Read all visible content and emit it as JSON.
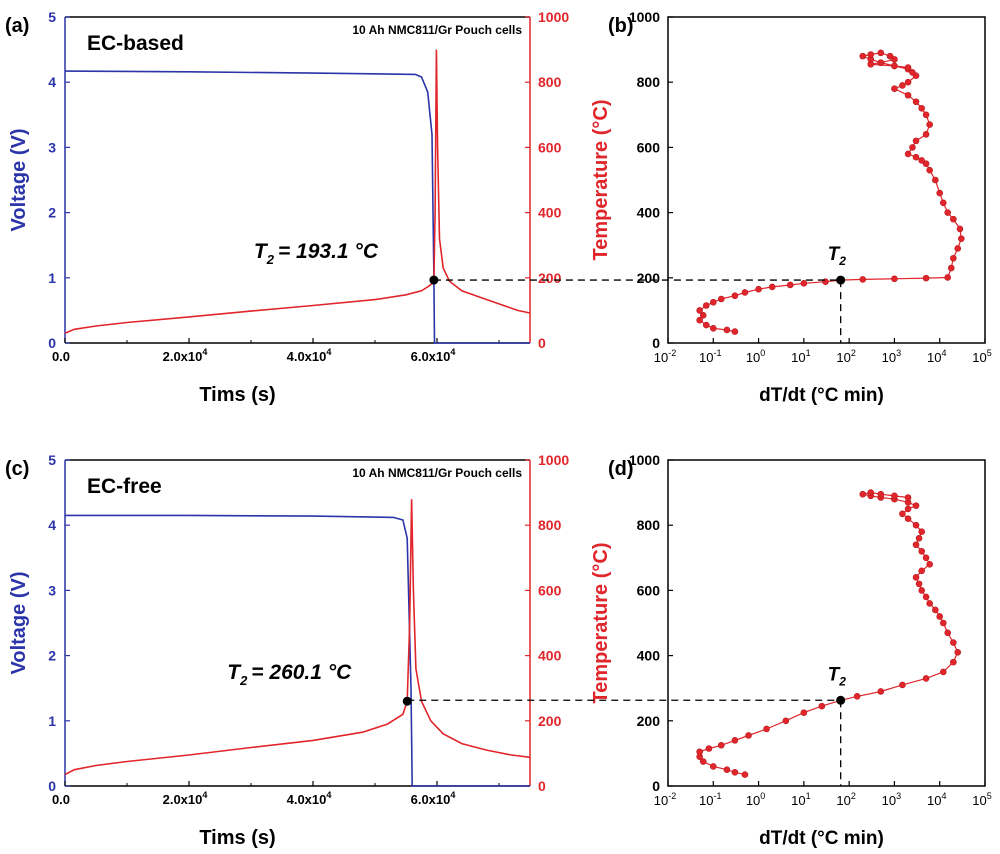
{
  "colors": {
    "voltage": "#2b34a8",
    "temperature": "#e0262b",
    "marker": "#000000",
    "frame": "#000000"
  },
  "chart_data": [
    {
      "panel_label": "(a)",
      "type": "line",
      "annotation_box": "EC-based",
      "note": "10 Ah NMC811/Gr Pouch cells",
      "xlabel": "Tims (s)",
      "ylabel_left": "Voltage (V)",
      "ylabel_right": "Temperature (°C)",
      "xlim": [
        0,
        75000
      ],
      "ylim_left": [
        0,
        5
      ],
      "ylim_right": [
        0,
        1000
      ],
      "x_ticks": [
        "0.0",
        "2.0x10",
        "4.0x10",
        "6.0x10"
      ],
      "y_left_ticks": [
        "0",
        "1",
        "2",
        "3",
        "4",
        "5"
      ],
      "y_right_ticks": [
        "0",
        "200",
        "400",
        "600",
        "800",
        "1000"
      ],
      "t2_label": "T",
      "t2_subscript": "2",
      "t2_value_text": "= 193.1 °C",
      "t2": {
        "x": 59500,
        "temp": 193.1
      },
      "series": [
        {
          "axis": "left",
          "x": [
            0,
            20000,
            40000,
            56500,
            57500,
            58500,
            59200,
            59500,
            59600,
            75000
          ],
          "values": [
            4.17,
            4.16,
            4.14,
            4.12,
            4.08,
            3.85,
            3.2,
            1.0,
            0.0,
            0.0
          ]
        },
        {
          "axis": "right",
          "x": [
            0,
            1500,
            5000,
            10000,
            20000,
            30000,
            40000,
            50000,
            55000,
            57500,
            58500,
            59200,
            59500,
            59700,
            59900,
            60100,
            60400,
            61000,
            62000,
            64000,
            67000,
            70000,
            73000,
            75000
          ],
          "values": [
            30,
            42,
            52,
            63,
            80,
            98,
            115,
            133,
            148,
            160,
            172,
            182,
            193,
            400,
            900,
            600,
            320,
            230,
            190,
            160,
            140,
            120,
            100,
            92
          ]
        }
      ]
    },
    {
      "panel_label": "(b)",
      "type": "scatter",
      "xlabel": "dT/dt (°C min)",
      "ylabel": "",
      "x_scale": "log",
      "xlim": [
        0.01,
        100000
      ],
      "ylim": [
        0,
        1000
      ],
      "x_ticks": [
        "10",
        "10",
        "10",
        "10",
        "10",
        "10",
        "10",
        "10"
      ],
      "x_tick_exponents": [
        "-2",
        "-1",
        "0",
        "1",
        "2",
        "3",
        "4",
        "5"
      ],
      "y_ticks": [
        "0",
        "200",
        "400",
        "600",
        "800",
        "1000"
      ],
      "t2_label": "T",
      "t2_subscript": "2",
      "t2": {
        "x": 65,
        "temp": 193
      },
      "x": [
        0.3,
        0.2,
        0.1,
        0.07,
        0.05,
        0.06,
        0.05,
        0.07,
        0.1,
        0.15,
        0.3,
        0.5,
        1,
        2,
        5,
        10,
        30,
        65,
        200,
        1000,
        5000,
        15000,
        18000,
        20000,
        25000,
        30000,
        28000,
        20000,
        15000,
        12000,
        10000,
        8000,
        6000,
        5000,
        4000,
        3000,
        2000,
        2500,
        3000,
        5000,
        6000,
        5000,
        4000,
        3000,
        2000,
        1000,
        1500,
        2000,
        3000,
        2500,
        2000,
        1000,
        500,
        300,
        200,
        300,
        500,
        800,
        1000,
        500,
        300,
        1000,
        2000
      ],
      "y": [
        35,
        40,
        45,
        55,
        70,
        85,
        100,
        115,
        125,
        135,
        145,
        155,
        165,
        172,
        178,
        183,
        188,
        193,
        195,
        197,
        199,
        201,
        230,
        260,
        290,
        320,
        350,
        380,
        400,
        430,
        460,
        500,
        530,
        550,
        560,
        570,
        580,
        600,
        620,
        640,
        670,
        700,
        720,
        740,
        760,
        780,
        790,
        800,
        820,
        830,
        840,
        850,
        860,
        870,
        880,
        885,
        890,
        880,
        870,
        860,
        855,
        850,
        845
      ]
    },
    {
      "panel_label": "(c)",
      "type": "line",
      "annotation_box": "EC-free",
      "note": "10 Ah NMC811/Gr Pouch cells",
      "xlabel": "Tims (s)",
      "ylabel_left": "Voltage (V)",
      "ylabel_right": "Temperature (°C)",
      "xlim": [
        0,
        75000
      ],
      "ylim_left": [
        0,
        5
      ],
      "ylim_right": [
        0,
        1000
      ],
      "x_ticks": [
        "0.0",
        "2.0x10",
        "4.0x10",
        "6.0x10"
      ],
      "y_left_ticks": [
        "0",
        "1",
        "2",
        "3",
        "4",
        "5"
      ],
      "y_right_ticks": [
        "0",
        "200",
        "400",
        "600",
        "800",
        "1000"
      ],
      "t2_label": "T",
      "t2_subscript": "2",
      "t2_value_text": "= 260.1 °C",
      "t2": {
        "x": 55200,
        "temp": 260.1
      },
      "series": [
        {
          "axis": "left",
          "x": [
            0,
            20000,
            40000,
            53000,
            54500,
            55200,
            55800,
            56000,
            75000
          ],
          "values": [
            4.15,
            4.15,
            4.14,
            4.12,
            4.08,
            3.8,
            1.5,
            0.0,
            0.0
          ]
        },
        {
          "axis": "right",
          "x": [
            0,
            1500,
            5000,
            10000,
            20000,
            30000,
            40000,
            48000,
            52000,
            54500,
            55200,
            55600,
            55900,
            56200,
            56600,
            57500,
            59000,
            61000,
            64000,
            68000,
            72000,
            75000
          ],
          "values": [
            35,
            50,
            63,
            75,
            95,
            118,
            140,
            165,
            190,
            220,
            260,
            500,
            880,
            600,
            360,
            260,
            200,
            160,
            130,
            110,
            95,
            88
          ]
        }
      ]
    },
    {
      "panel_label": "(d)",
      "type": "scatter",
      "xlabel": "dT/dt (°C min)",
      "ylabel": "",
      "x_scale": "log",
      "xlim": [
        0.01,
        100000
      ],
      "ylim": [
        0,
        1000
      ],
      "x_ticks": [
        "10",
        "10",
        "10",
        "10",
        "10",
        "10",
        "10",
        "10"
      ],
      "x_tick_exponents": [
        "-2",
        "-1",
        "0",
        "1",
        "2",
        "3",
        "4",
        "5"
      ],
      "y_ticks": [
        "0",
        "200",
        "400",
        "600",
        "800",
        "1000"
      ],
      "t2_label": "T",
      "t2_subscript": "2",
      "t2": {
        "x": 65,
        "temp": 263
      },
      "x": [
        0.5,
        0.3,
        0.2,
        0.1,
        0.06,
        0.05,
        0.05,
        0.08,
        0.15,
        0.3,
        0.6,
        1.5,
        4,
        10,
        25,
        65,
        150,
        500,
        1500,
        5000,
        12000,
        20000,
        25000,
        20000,
        15000,
        12000,
        10000,
        8000,
        6000,
        5000,
        4000,
        3500,
        3000,
        4000,
        6000,
        5000,
        4000,
        3000,
        3500,
        4000,
        3000,
        2000,
        1500,
        2000,
        3000,
        2000,
        1000,
        500,
        300,
        200,
        300,
        500,
        1000,
        2000
      ],
      "y": [
        35,
        42,
        50,
        60,
        75,
        90,
        105,
        115,
        125,
        140,
        155,
        175,
        200,
        225,
        245,
        263,
        275,
        290,
        310,
        330,
        350,
        380,
        410,
        440,
        470,
        500,
        520,
        540,
        560,
        580,
        600,
        620,
        640,
        660,
        680,
        700,
        720,
        740,
        760,
        780,
        800,
        820,
        835,
        850,
        860,
        870,
        880,
        885,
        890,
        895,
        900,
        895,
        890,
        885
      ]
    }
  ]
}
